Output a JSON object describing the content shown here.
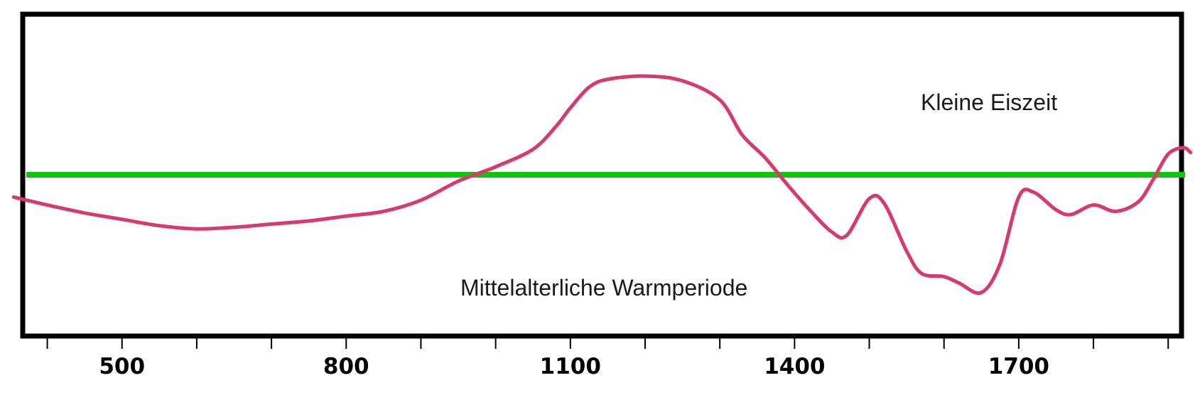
{
  "chart_data": {
    "type": "line",
    "x_ticks": [
      500,
      800,
      1100,
      1400,
      1700
    ],
    "xlim": [
      370,
      1915
    ],
    "ylim": [
      -1,
      1
    ],
    "grid": false,
    "reference_level": 0,
    "series": [
      {
        "color": "#d63a6e",
        "points": [
          [
            355,
            -0.14
          ],
          [
            400,
            -0.19
          ],
          [
            450,
            -0.24
          ],
          [
            500,
            -0.28
          ],
          [
            550,
            -0.32
          ],
          [
            600,
            -0.34
          ],
          [
            650,
            -0.33
          ],
          [
            700,
            -0.31
          ],
          [
            750,
            -0.29
          ],
          [
            800,
            -0.26
          ],
          [
            850,
            -0.23
          ],
          [
            900,
            -0.16
          ],
          [
            950,
            -0.04
          ],
          [
            1000,
            0.05
          ],
          [
            1050,
            0.16
          ],
          [
            1080,
            0.3
          ],
          [
            1100,
            0.42
          ],
          [
            1125,
            0.55
          ],
          [
            1150,
            0.6
          ],
          [
            1200,
            0.62
          ],
          [
            1250,
            0.59
          ],
          [
            1300,
            0.47
          ],
          [
            1330,
            0.25
          ],
          [
            1360,
            0.11
          ],
          [
            1390,
            -0.06
          ],
          [
            1420,
            -0.22
          ],
          [
            1450,
            -0.36
          ],
          [
            1470,
            -0.38
          ],
          [
            1500,
            -0.15
          ],
          [
            1520,
            -0.18
          ],
          [
            1550,
            -0.48
          ],
          [
            1570,
            -0.62
          ],
          [
            1600,
            -0.64
          ],
          [
            1620,
            -0.68
          ],
          [
            1650,
            -0.74
          ],
          [
            1675,
            -0.56
          ],
          [
            1700,
            -0.14
          ],
          [
            1720,
            -0.11
          ],
          [
            1750,
            -0.22
          ],
          [
            1770,
            -0.25
          ],
          [
            1800,
            -0.19
          ],
          [
            1830,
            -0.23
          ],
          [
            1860,
            -0.17
          ],
          [
            1880,
            -0.03
          ],
          [
            1900,
            0.13
          ],
          [
            1920,
            0.17
          ],
          [
            1930,
            0.14
          ]
        ]
      }
    ],
    "reference_line_color": "#12c412",
    "annotations": {
      "little_ice_age": "Kleine Eiszeit",
      "medieval_warm_period": "Mittelalterliche Warmperiode"
    }
  }
}
